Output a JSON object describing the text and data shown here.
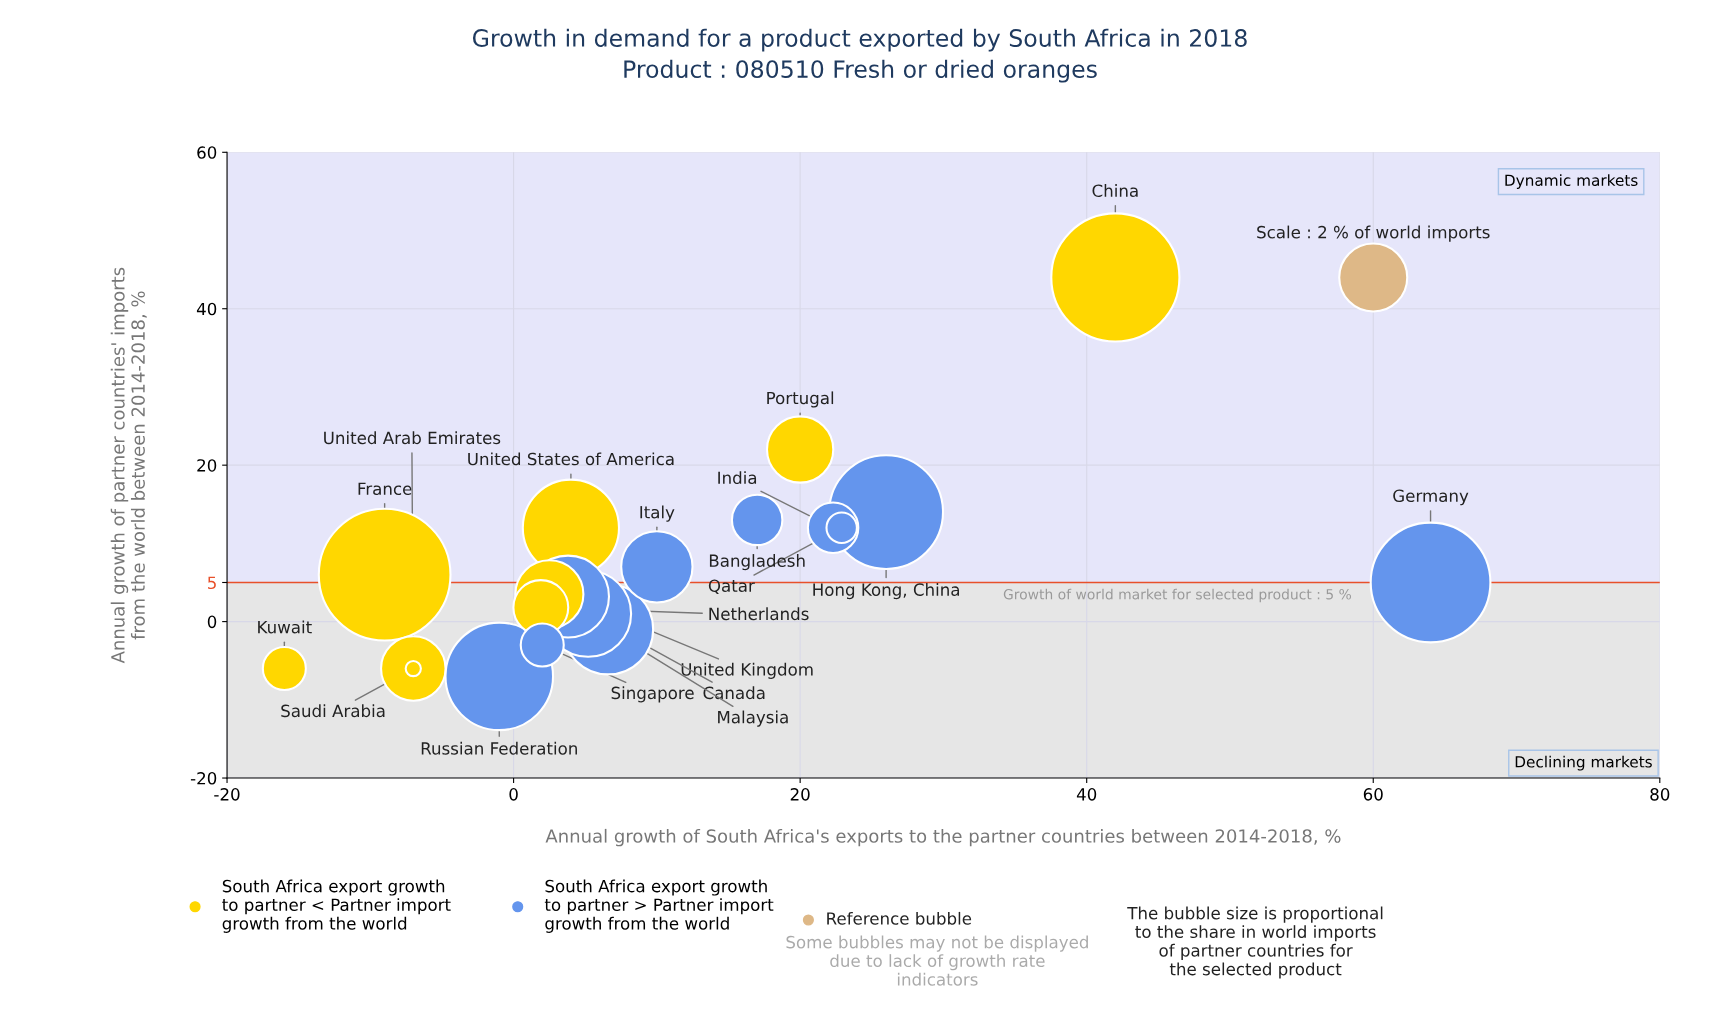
{
  "chart_data": {
    "type": "bubble",
    "title": "Growth in demand for a product exported by South Africa in 2018",
    "subtitle": "Product : 080510 Fresh or dried oranges",
    "xlabel": "Annual growth of South Africa's exports to the partner countries between 2014-2018, %",
    "ylabel": "Annual growth of partner countries' imports\nfrom the world between 2014-2018, %",
    "xlim": [
      -20,
      80
    ],
    "xticks": [
      -20,
      0,
      20,
      40,
      60,
      80
    ],
    "ylim": [
      -20,
      60
    ],
    "yticks": [
      -20,
      0,
      5,
      20,
      40,
      60
    ],
    "grid": true,
    "legend": "bottom",
    "size_legend": [
      {
        "value": 2,
        "label": "Scale : 2 % of world imports"
      }
    ],
    "series": [
      {
        "name": "South Africa export growth\nto partner < Partner import\ngrowth from the world",
        "color": "#ffd700",
        "x": [
          42,
          20,
          -9,
          -7,
          -7,
          -16,
          4,
          2.5,
          1.9
        ],
        "values": [
          44,
          22,
          6,
          -6,
          -6,
          -6,
          12,
          3.5,
          1.8
        ],
        "sizes": [
          7.1,
          1.9,
          7.5,
          1.8,
          0.1,
          0.8,
          4.0,
          2.0,
          1.3
        ]
      },
      {
        "name": "South Africa export growth\nto partner > Partner import\ngrowth from the world",
        "color": "#6495ed",
        "x": [
          64,
          26,
          22.3,
          22.9,
          17,
          10,
          -1,
          6.6,
          5.2,
          3.8,
          2
        ],
        "values": [
          5,
          14,
          12,
          12,
          13,
          7,
          -7,
          -1,
          1,
          3.2,
          -3
        ],
        "sizes": [
          6.2,
          5.6,
          1.1,
          0.4,
          1.1,
          2.2,
          5.0,
          3.5,
          3.2,
          2.9,
          0.8
        ]
      }
    ],
    "ref_lines": [
      {
        "axis": "y",
        "value": 5,
        "label": "Growth of world market for selected product : 5 %",
        "color": "#e8502a"
      }
    ],
    "bands": [
      {
        "axis": "y",
        "from": 5,
        "to": 60,
        "label": "Dynamic markets",
        "color": "#e6e6fa"
      },
      {
        "axis": "y",
        "from": -20,
        "to": 5,
        "label": "Declining markets",
        "color": "#e6e6e6"
      }
    ],
    "annotations": [
      {
        "text": "China",
        "x": 42,
        "y": 44
      },
      {
        "text": "Portugal",
        "x": 20,
        "y": 22
      },
      {
        "text": "India",
        "x": 22.3,
        "y": 12
      },
      {
        "text": "Qatar",
        "x": 22.9,
        "y": 12
      },
      {
        "text": "Bangladesh",
        "x": 17,
        "y": 13
      },
      {
        "text": "Hong Kong, China",
        "x": 26,
        "y": 14
      },
      {
        "text": "Germany",
        "x": 64,
        "y": 5
      },
      {
        "text": "France",
        "x": -9,
        "y": 6
      },
      {
        "text": "Saudi Arabia",
        "x": -7,
        "y": -6
      },
      {
        "text": "United Arab Emirates",
        "x": -7,
        "y": -6
      },
      {
        "text": "Kuwait",
        "x": -16,
        "y": -6
      },
      {
        "text": "United States of America",
        "x": 4,
        "y": 12
      },
      {
        "text": "Italy",
        "x": 10,
        "y": 7
      },
      {
        "text": "Russian Federation",
        "x": -1,
        "y": -7
      },
      {
        "text": "Netherlands",
        "x": 1.9,
        "y": 1.8
      },
      {
        "text": "United Kingdom",
        "x": 3.8,
        "y": 3.2
      },
      {
        "text": "Canada",
        "x": 5.2,
        "y": 1
      },
      {
        "text": "Malaysia",
        "x": 6.6,
        "y": -1
      },
      {
        "text": "Singapore",
        "x": 2,
        "y": -3
      },
      "Reference bubble",
      "Some bubbles may not be displayed\ndue to lack of growth rate\nindicators",
      "The bubble size is proportional\nto the share in world imports\nof partner countries for\nthe selected product"
    ]
  }
}
